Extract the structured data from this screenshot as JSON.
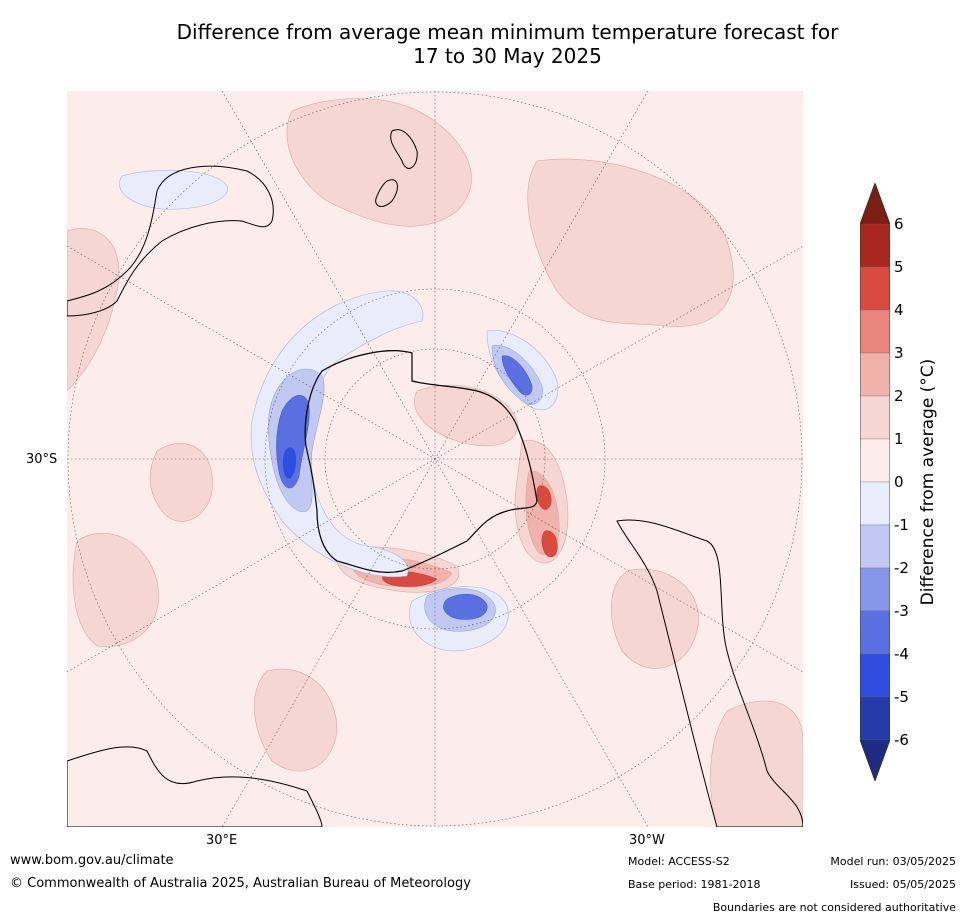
{
  "title": {
    "line1": "Difference from average mean minimum temperature forecast for",
    "line2": "17 to 30 May 2025"
  },
  "map": {
    "projection": "south polar stereographic",
    "labels": {
      "lat": "30°S",
      "lon_left": "30°E",
      "lon_right": "30°W"
    },
    "colors": {
      "background": "#fcecea",
      "coast": "#000000",
      "grid": "#555555"
    }
  },
  "colorbar": {
    "label": "Difference from average (°C)",
    "ticks": [
      "6",
      "5",
      "4",
      "3",
      "2",
      "1",
      "0",
      "-1",
      "-2",
      "-3",
      "-4",
      "-5",
      "-6"
    ],
    "colors": [
      "#7b1e14",
      "#a8271f",
      "#d94b3f",
      "#e9857c",
      "#f0b2ab",
      "#f6d6d2",
      "#fcecea",
      "#e8ecfb",
      "#c1c9f2",
      "#8697e9",
      "#5a70e0",
      "#2f4ee0",
      "#263ba8",
      "#1d2b80"
    ]
  },
  "footer": {
    "website": "www.bom.gov.au/climate",
    "copyright": "© Commonwealth of Australia 2025, Australian Bureau of Meteorology",
    "model": "Model: ACCESS-S2",
    "base_period": "Base period: 1981-2018",
    "model_run": "Model run: 03/05/2025",
    "issued": "Issued: 05/05/2025",
    "disclaimer": "Boundaries are not considered authoritative"
  }
}
